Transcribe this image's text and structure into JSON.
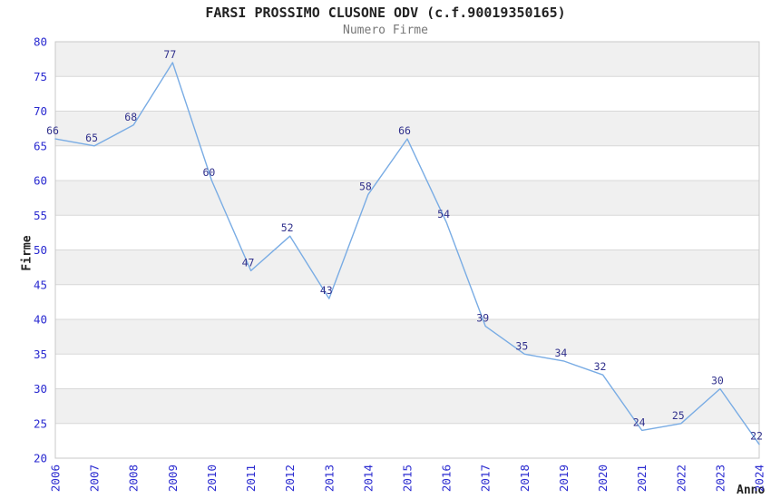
{
  "header": {
    "title": "FARSI PROSSIMO CLUSONE ODV (c.f.90019350165)",
    "subtitle": "Numero Firme"
  },
  "chart_data": {
    "type": "line",
    "title": "FARSI PROSSIMO CLUSONE ODV (c.f.90019350165)",
    "subtitle": "Numero Firme",
    "xlabel": "Anno",
    "ylabel": "Firme",
    "categories": [
      "2006",
      "2007",
      "2008",
      "2009",
      "2010",
      "2011",
      "2012",
      "2013",
      "2014",
      "2015",
      "2016",
      "2017",
      "2018",
      "2019",
      "2020",
      "2021",
      "2022",
      "2023",
      "2024"
    ],
    "values": [
      66,
      65,
      68,
      77,
      60,
      47,
      52,
      43,
      58,
      66,
      54,
      39,
      35,
      34,
      32,
      24,
      25,
      30,
      22
    ],
    "ylim": [
      20,
      80
    ],
    "ytick_step": 5,
    "grid": true,
    "alternating_bands": true,
    "legend_position": "none",
    "point_labels_visible": true,
    "colors": {
      "line": "#79ace4",
      "tick_label": "#2a2ad0",
      "value_label": "#31318c",
      "band_gray": "#f0f0f0",
      "band_white": "#ffffff",
      "grid_line": "#d8d8d8",
      "plot_border": "#c8c8c8",
      "title": "#222222",
      "subtitle": "#777777",
      "axis_title": "#222222"
    }
  }
}
